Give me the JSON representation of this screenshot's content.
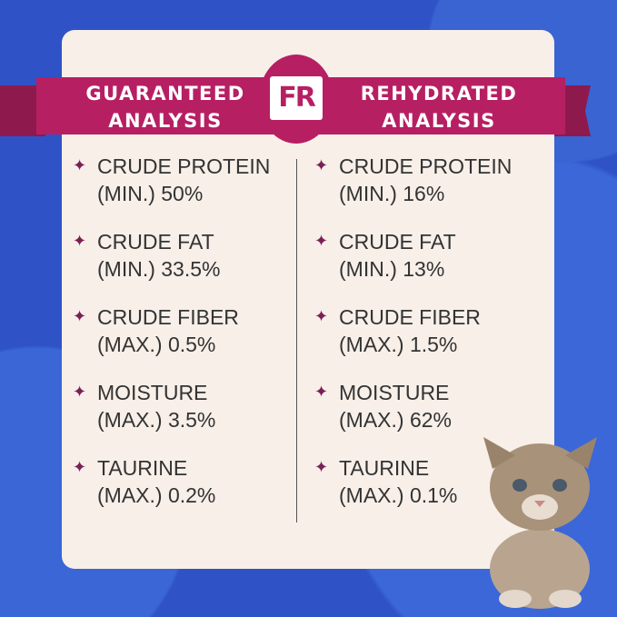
{
  "colors": {
    "background": "#2f53c6",
    "card": "#f7efe8",
    "banner": "#b71f63",
    "star": "#7a1f55"
  },
  "logo_text": "FR",
  "guaranteed": {
    "title_1": "GUARANTEED",
    "title_2": "ANALYSIS",
    "items": [
      {
        "name": "CRUDE PROTEIN",
        "value": "(MIN.) 50%"
      },
      {
        "name": "CRUDE FAT",
        "value": "(MIN.) 33.5%"
      },
      {
        "name": "CRUDE FIBER",
        "value": "(MAX.) 0.5%"
      },
      {
        "name": "MOISTURE",
        "value": "(MAX.) 3.5%"
      },
      {
        "name": "TAURINE",
        "value": "(MAX.) 0.2%"
      }
    ]
  },
  "rehydrated": {
    "title_1": "REHYDRATED",
    "title_2": "ANALYSIS",
    "items": [
      {
        "name": "CRUDE PROTEIN",
        "value": "(MIN.) 16%"
      },
      {
        "name": "CRUDE FAT",
        "value": "(MIN.) 13%"
      },
      {
        "name": "CRUDE FIBER",
        "value": "(MAX.) 1.5%"
      },
      {
        "name": "MOISTURE",
        "value": "(MAX.) 62%"
      },
      {
        "name": "TAURINE",
        "value": "(MAX.) 0.1%"
      }
    ]
  }
}
